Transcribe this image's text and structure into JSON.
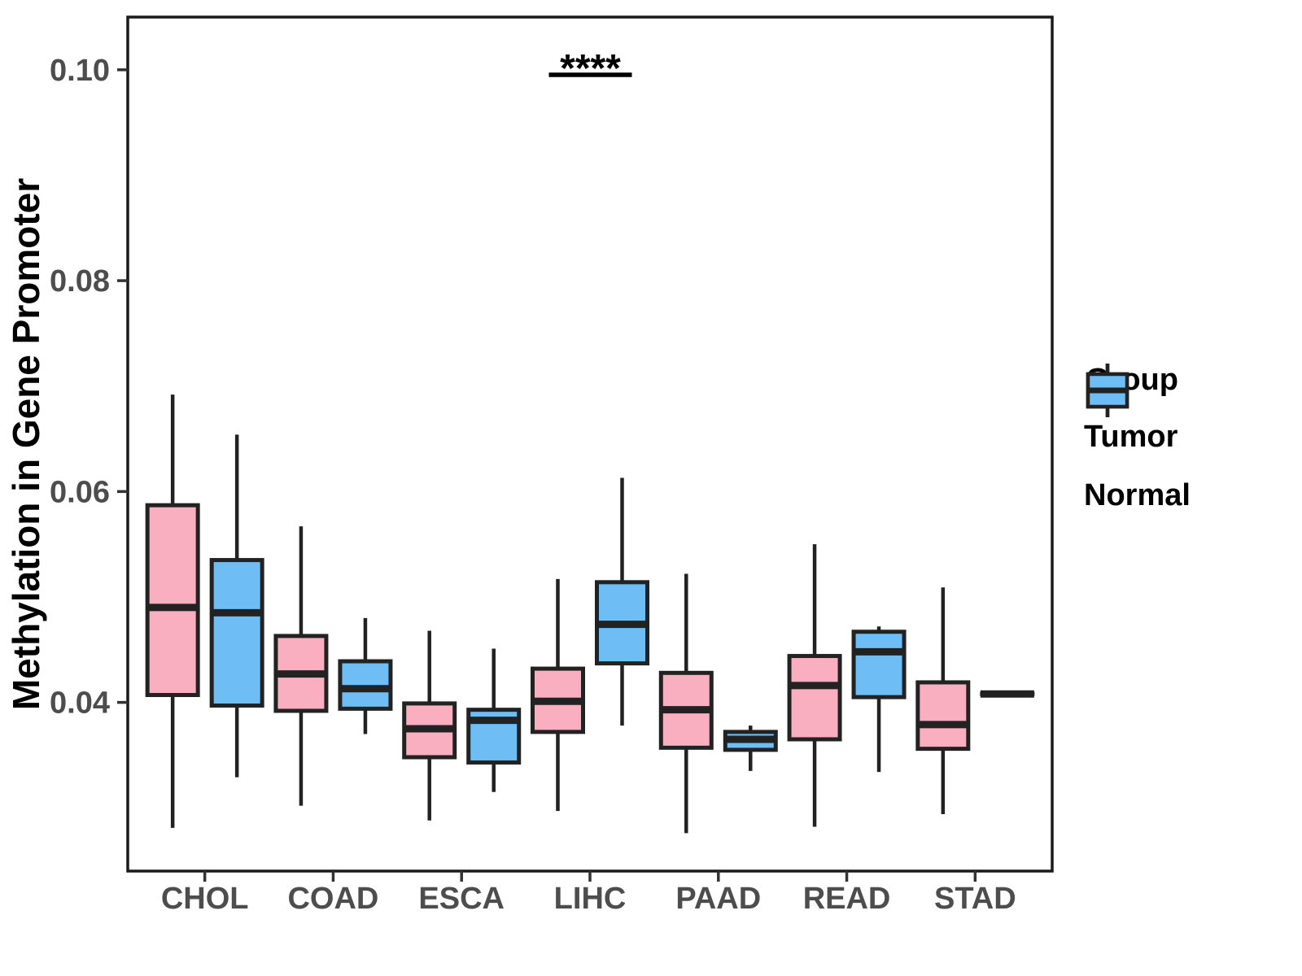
{
  "chart_data": {
    "type": "grouped_boxplot",
    "title": "",
    "xlabel": "",
    "ylabel": "Methylation in Gene Promoter",
    "categories": [
      "CHOL",
      "COAD",
      "ESCA",
      "LIHC",
      "PAAD",
      "READ",
      "STAD"
    ],
    "y_axis": {
      "tick_values": [
        0.04,
        0.06,
        0.08,
        0.1
      ],
      "tick_labels": [
        "0.04",
        "0.06",
        "0.08",
        "0.10"
      ],
      "range": [
        0.024,
        0.105
      ],
      "grid": false
    },
    "groups": [
      {
        "name": "Tumor",
        "color": "#FAAFC0"
      },
      {
        "name": "Normal",
        "color": "#6EBEF5"
      }
    ],
    "series": [
      {
        "group": "Tumor",
        "boxes": [
          {
            "category": "CHOL",
            "whisker_low": 0.0281,
            "q1": 0.0407,
            "median": 0.049,
            "q3": 0.0587,
            "whisker_high": 0.0692
          },
          {
            "category": "COAD",
            "whisker_low": 0.0302,
            "q1": 0.0392,
            "median": 0.0427,
            "q3": 0.0463,
            "whisker_high": 0.0567
          },
          {
            "category": "ESCA",
            "whisker_low": 0.0288,
            "q1": 0.0348,
            "median": 0.0375,
            "q3": 0.0399,
            "whisker_high": 0.0468
          },
          {
            "category": "LIHC",
            "whisker_low": 0.0297,
            "q1": 0.0372,
            "median": 0.0401,
            "q3": 0.0432,
            "whisker_high": 0.0517
          },
          {
            "category": "PAAD",
            "whisker_low": 0.0276,
            "q1": 0.0357,
            "median": 0.0393,
            "q3": 0.0428,
            "whisker_high": 0.0522
          },
          {
            "category": "READ",
            "whisker_low": 0.0282,
            "q1": 0.0365,
            "median": 0.0416,
            "q3": 0.0444,
            "whisker_high": 0.055
          },
          {
            "category": "STAD",
            "whisker_low": 0.0294,
            "q1": 0.0356,
            "median": 0.0379,
            "q3": 0.0419,
            "whisker_high": 0.0509
          }
        ]
      },
      {
        "group": "Normal",
        "boxes": [
          {
            "category": "CHOL",
            "whisker_low": 0.0329,
            "q1": 0.0397,
            "median": 0.0485,
            "q3": 0.0535,
            "whisker_high": 0.0654
          },
          {
            "category": "COAD",
            "whisker_low": 0.037,
            "q1": 0.0394,
            "median": 0.0413,
            "q3": 0.0439,
            "whisker_high": 0.048
          },
          {
            "category": "ESCA",
            "whisker_low": 0.0315,
            "q1": 0.0343,
            "median": 0.0383,
            "q3": 0.0393,
            "whisker_high": 0.0451
          },
          {
            "category": "LIHC",
            "whisker_low": 0.0378,
            "q1": 0.0437,
            "median": 0.0474,
            "q3": 0.0514,
            "whisker_high": 0.0613
          },
          {
            "category": "PAAD",
            "whisker_low": 0.0335,
            "q1": 0.0355,
            "median": 0.0365,
            "q3": 0.0372,
            "whisker_high": 0.0378
          },
          {
            "category": "READ",
            "whisker_low": 0.0334,
            "q1": 0.0405,
            "median": 0.0448,
            "q3": 0.0467,
            "whisker_high": 0.0472
          },
          {
            "category": "STAD",
            "whisker_low": 0.0408,
            "q1": 0.0408,
            "median": 0.0408,
            "q3": 0.0408,
            "whisker_high": 0.0408
          }
        ]
      }
    ],
    "annotation": {
      "text": "****",
      "category": "LIHC"
    },
    "legend": {
      "title": "Group",
      "position": "right",
      "items": [
        "Tumor",
        "Normal"
      ]
    },
    "colors": {
      "line": "#222222",
      "axis_text": "#4d4d4d",
      "title_text": "#000000",
      "background": "#ffffff"
    }
  }
}
